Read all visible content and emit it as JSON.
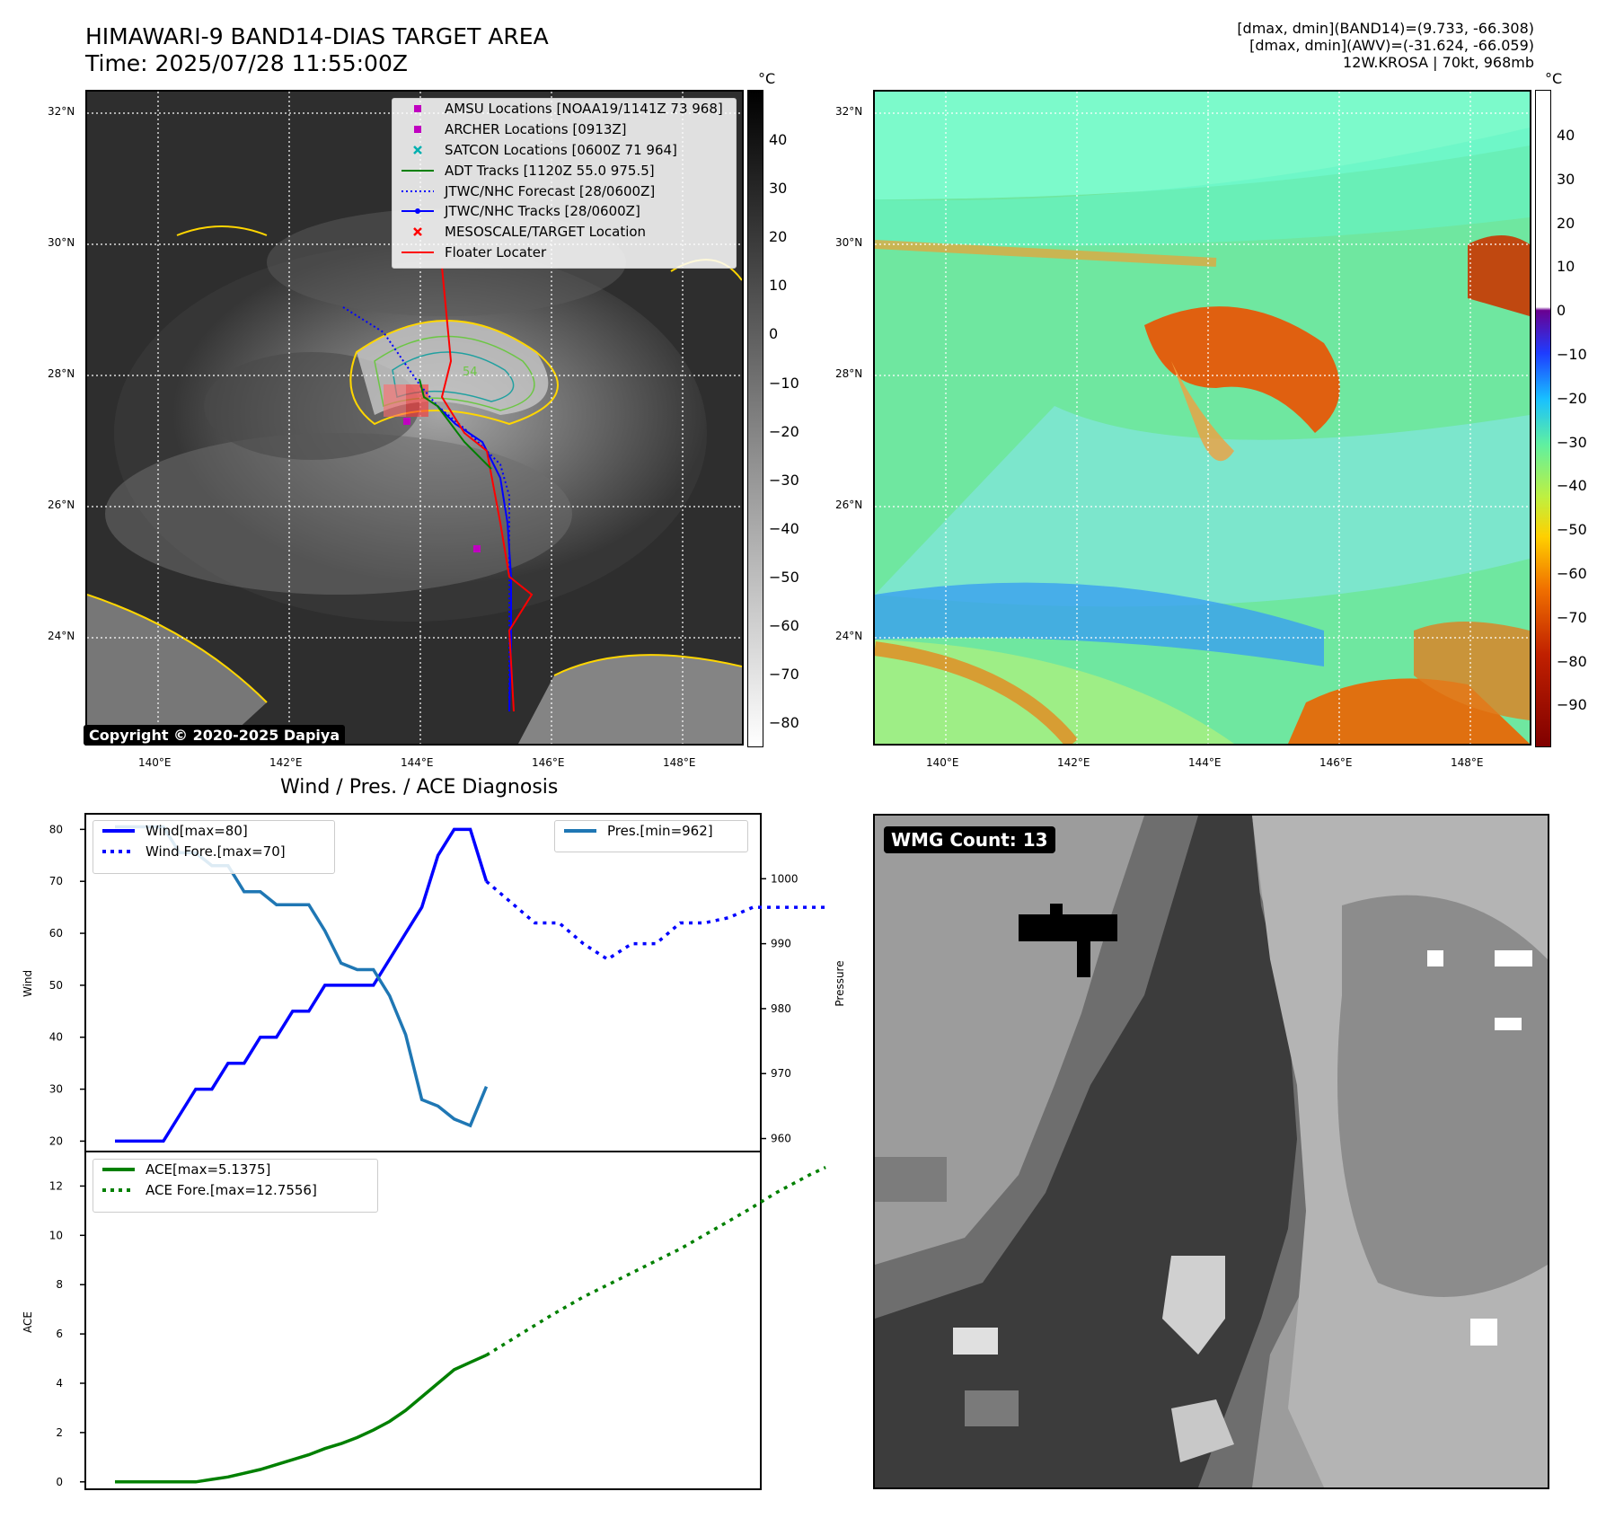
{
  "header": {
    "title_line1": "HIMAWARI-9 BAND14-DIAS TARGET AREA",
    "title_line2": "Time: 2025/07/28 11:55:00Z",
    "stats_line1": "[dmax, dmin](BAND14)=(9.733, -66.308)",
    "stats_line2": "[dmax, dmin](AWV)=(-31.624, -66.059)",
    "stats_line3": "12W.KROSA | 70kt, 968mb"
  },
  "map": {
    "lat_labels": [
      "32°N",
      "30°N",
      "28°N",
      "26°N",
      "24°N"
    ],
    "lon_labels": [
      "140°E",
      "142°E",
      "144°E",
      "146°E",
      "148°E"
    ],
    "contour_label": "54",
    "unit": "°C",
    "colorbar1_ticks": [
      "40",
      "30",
      "20",
      "10",
      "0",
      "−10",
      "−20",
      "−30",
      "−40",
      "−50",
      "−60",
      "−70",
      "−80"
    ],
    "colorbar2_ticks": [
      "40",
      "30",
      "20",
      "10",
      "0",
      "−10",
      "−20",
      "−30",
      "−40",
      "−50",
      "−60",
      "−70",
      "−80",
      "−90"
    ],
    "copyright": "Copyright © 2020-2025 Dapiya",
    "legend": [
      {
        "label": "AMSU Locations [NOAA19/1141Z 73 968]",
        "marker": "square",
        "color": "#c000c0"
      },
      {
        "label": "ARCHER Locations [0913Z]",
        "marker": "square",
        "color": "#c000c0"
      },
      {
        "label": "SATCON Locations [0600Z 71 964]",
        "marker": "x",
        "color": "#00b0b0"
      },
      {
        "label": "ADT Tracks [1120Z 55.0 975.5]",
        "marker": "line",
        "color": "#008000"
      },
      {
        "label": "JTWC/NHC Forecast [28/0600Z]",
        "marker": "dotted",
        "color": "#0000ff"
      },
      {
        "label": "JTWC/NHC Tracks [28/0600Z]",
        "marker": "linedot",
        "color": "#0000ff"
      },
      {
        "label": "MESOSCALE/TARGET Location",
        "marker": "x",
        "color": "#ff0000"
      },
      {
        "label": "Floater Locater",
        "marker": "line",
        "color": "#ff0000"
      }
    ]
  },
  "diagnosis": {
    "title": "Wind / Pres. / ACE Diagnosis",
    "wmg_label": "WMG Count: 13"
  },
  "chart_data": [
    {
      "type": "line",
      "title": "",
      "ylabel": "Wind",
      "ylim": [
        18,
        83
      ],
      "series": [
        {
          "name": "Wind[max=80]",
          "color": "#0000ff",
          "style": "solid",
          "x": [
            0,
            1,
            2,
            3,
            4,
            5,
            6,
            7,
            8,
            9,
            10,
            11,
            12,
            13,
            14,
            15,
            16,
            17,
            18,
            19,
            20,
            21,
            22,
            23,
            24,
            25,
            26
          ],
          "values": [
            20,
            20,
            20,
            20,
            25,
            30,
            30,
            35,
            35,
            40,
            40,
            45,
            45,
            50,
            50,
            50,
            50,
            55,
            60,
            65,
            75,
            80,
            80,
            70,
            null,
            null,
            null
          ]
        },
        {
          "name": "Wind Fore.[max=70]",
          "color": "#0000ff",
          "style": "dotted",
          "x": [
            23,
            24.5,
            26,
            27.5,
            29,
            30.5,
            32,
            33.5,
            35,
            36.5,
            38,
            39.5,
            41,
            42.5,
            44
          ],
          "values": [
            70,
            66,
            62,
            62,
            58,
            55,
            58,
            58,
            62,
            62,
            63,
            65,
            65,
            65,
            65
          ]
        }
      ],
      "y_ticks": [
        20,
        30,
        40,
        50,
        60,
        70,
        80
      ]
    },
    {
      "type": "line",
      "title": "",
      "ylabel": "Pressure",
      "ylim": [
        958,
        1010
      ],
      "series": [
        {
          "name": "Pres.[min=962]",
          "color": "#1f77b4",
          "style": "solid",
          "x": [
            0,
            1,
            2,
            3,
            4,
            5,
            6,
            7,
            8,
            9,
            10,
            11,
            12,
            13,
            14,
            15,
            16,
            17,
            18,
            19,
            20,
            21,
            22,
            23
          ],
          "values": [
            1008,
            1008,
            1008,
            1008,
            1004,
            1004,
            1002,
            1002,
            998,
            998,
            996,
            996,
            996,
            992,
            987,
            986,
            986,
            982,
            976,
            966,
            965,
            963,
            962,
            968
          ]
        }
      ],
      "y_ticks": [
        960,
        970,
        980,
        990,
        1000
      ]
    },
    {
      "type": "line",
      "title": "",
      "ylabel": "ACE",
      "ylim": [
        -0.3,
        13.4
      ],
      "series": [
        {
          "name": "ACE[max=5.1375]",
          "color": "#008000",
          "style": "solid",
          "x": [
            0,
            1,
            2,
            3,
            4,
            5,
            6,
            7,
            8,
            9,
            10,
            11,
            12,
            13,
            14,
            15,
            16,
            17,
            18,
            19,
            20,
            21,
            22,
            23
          ],
          "values": [
            0,
            0,
            0,
            0,
            0,
            0,
            0.1,
            0.2,
            0.35,
            0.5,
            0.7,
            0.9,
            1.1,
            1.35,
            1.55,
            1.8,
            2.1,
            2.45,
            2.9,
            3.45,
            4.0,
            4.55,
            4.85,
            5.14
          ]
        },
        {
          "name": "ACE Fore.[max=12.7556]",
          "color": "#008000",
          "style": "dotted",
          "x": [
            23,
            25,
            27,
            29,
            31,
            33,
            35,
            37,
            39,
            41,
            43,
            44
          ],
          "values": [
            5.14,
            5.95,
            6.75,
            7.5,
            8.15,
            8.8,
            9.45,
            10.2,
            10.95,
            11.75,
            12.45,
            12.76
          ]
        }
      ],
      "y_ticks": [
        0,
        2,
        4,
        6,
        8,
        10,
        12
      ]
    }
  ]
}
